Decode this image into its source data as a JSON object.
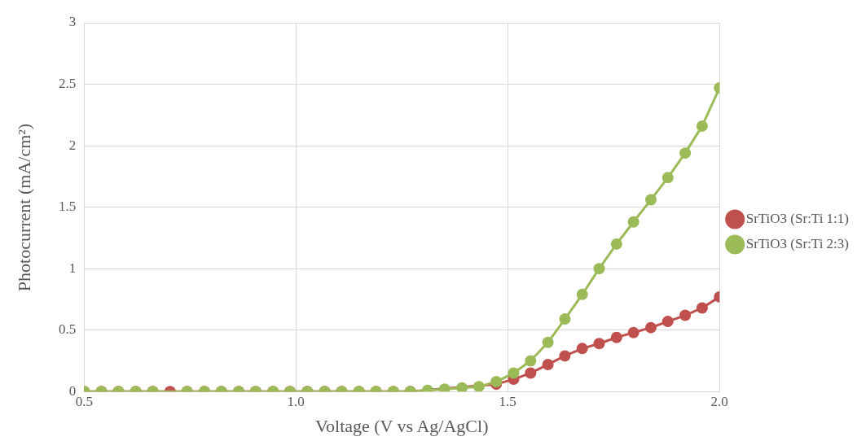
{
  "chart_data": {
    "type": "line",
    "xlabel": "Voltage (V vs Ag/AgCl)",
    "ylabel": "Photocurrent (mA/cm²)",
    "x": [
      0.5,
      0.541,
      0.581,
      0.622,
      0.662,
      0.703,
      0.743,
      0.784,
      0.824,
      0.865,
      0.905,
      0.946,
      0.986,
      1.027,
      1.068,
      1.108,
      1.149,
      1.189,
      1.23,
      1.27,
      1.311,
      1.351,
      1.392,
      1.432,
      1.473,
      1.514,
      1.554,
      1.595,
      1.635,
      1.676,
      1.716,
      1.757,
      1.797,
      1.838,
      1.878,
      1.919,
      1.959,
      2.0
    ],
    "series": [
      {
        "name": "SrTiO3 (Sr:Ti 1:1)",
        "color": "#c0504d",
        "values": [
          0,
          0,
          0,
          0,
          0,
          0,
          0,
          0,
          0,
          0,
          0,
          0,
          0,
          0,
          0,
          0,
          0,
          0,
          0,
          0,
          null,
          null,
          null,
          null,
          0.06,
          0.1,
          0.15,
          0.22,
          0.29,
          0.35,
          0.39,
          0.44,
          0.48,
          0.52,
          0.57,
          0.62,
          0.68,
          0.77
        ]
      },
      {
        "name": "SrTiO3 (Sr:Ti 2:3)",
        "color": "#9bbb59",
        "values": [
          0,
          0,
          0,
          0,
          0,
          null,
          0,
          0,
          0,
          0,
          0,
          0,
          0,
          0,
          0,
          0,
          0,
          0,
          0,
          0,
          0.01,
          0.02,
          0.03,
          0.04,
          0.08,
          0.15,
          0.25,
          0.4,
          0.59,
          0.79,
          1.0,
          1.2,
          1.38,
          1.56,
          1.74,
          1.94,
          2.16,
          2.47
        ]
      }
    ],
    "xlim": [
      0.5,
      2.0
    ],
    "xticks": [
      0.5,
      {
        "value": 1.0,
        "label": "1.0"
      },
      1.5,
      {
        "value": 2.0,
        "label": "2.0"
      }
    ],
    "ylim": [
      0,
      3
    ],
    "yticks": [
      0,
      0.5,
      1,
      1.5,
      2,
      2.5,
      3
    ],
    "grid": true,
    "legend": "right",
    "marker": "circle",
    "line_style": "solid"
  }
}
